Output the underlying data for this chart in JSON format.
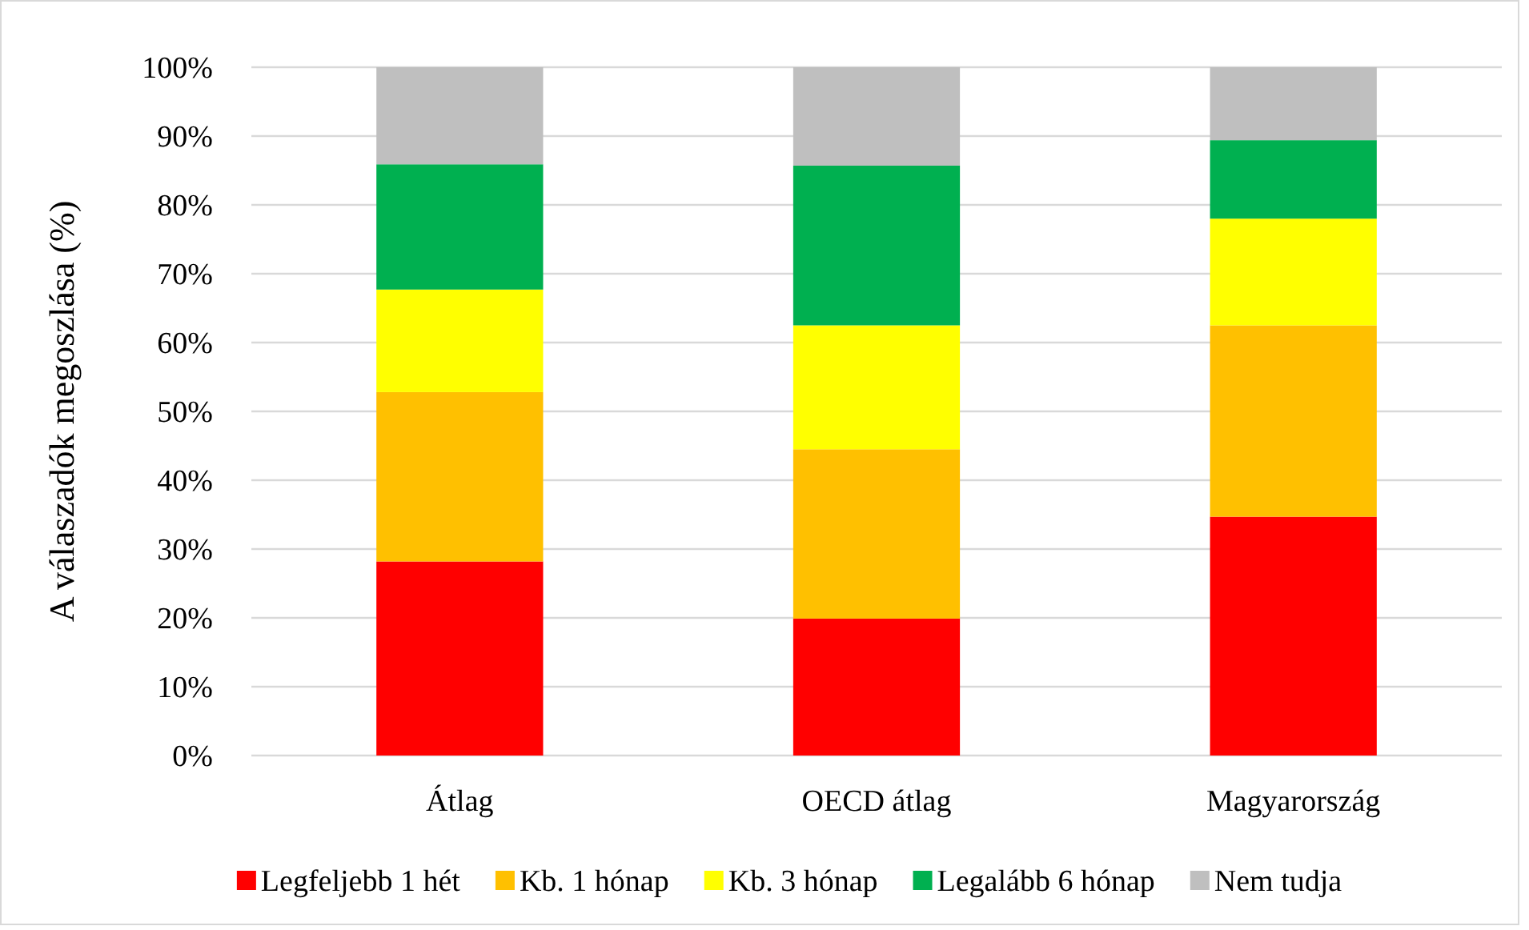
{
  "chart_data": {
    "type": "bar",
    "stacked": true,
    "categories": [
      "Átlag",
      "OECD átlag",
      "Magyarország"
    ],
    "ylabel": "A válaszadók megoszlása (%)",
    "ylim": [
      0,
      100
    ],
    "yticks": [
      {
        "value": 0,
        "label": "0%"
      },
      {
        "value": 10,
        "label": "10%"
      },
      {
        "value": 20,
        "label": "20%"
      },
      {
        "value": 30,
        "label": "30%"
      },
      {
        "value": 40,
        "label": "40%"
      },
      {
        "value": 50,
        "label": "50%"
      },
      {
        "value": 60,
        "label": "60%"
      },
      {
        "value": 70,
        "label": "70%"
      },
      {
        "value": 80,
        "label": "80%"
      },
      {
        "value": 90,
        "label": "90%"
      },
      {
        "value": 100,
        "label": "100%"
      }
    ],
    "grid": "y",
    "legend": "bottom",
    "series": [
      {
        "name": "Legfeljebb 1 hét",
        "color": "#ff0000",
        "values": [
          28.2,
          19.9,
          34.7
        ]
      },
      {
        "name": "Kb. 1 hónap",
        "color": "#ffc000",
        "values": [
          24.6,
          24.6,
          27.8
        ]
      },
      {
        "name": "Kb. 3 hónap",
        "color": "#ffff00",
        "values": [
          14.9,
          18.0,
          15.5
        ]
      },
      {
        "name": "Legalább 6 hónap",
        "color": "#00b050",
        "values": [
          18.2,
          23.2,
          11.4
        ]
      },
      {
        "name": "Nem tudja",
        "color": "#bfbfbf",
        "values": [
          14.1,
          14.3,
          10.6
        ]
      }
    ]
  }
}
